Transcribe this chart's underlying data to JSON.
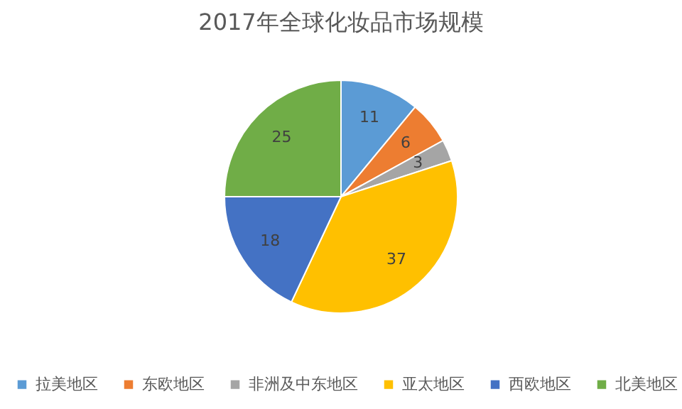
{
  "chart_data": {
    "type": "pie",
    "title": "2017年全球化妆品市场规模",
    "categories": [
      "拉美地区",
      "东欧地区",
      "非洲及中东地区",
      "亚太地区",
      "西欧地区",
      "北美地区"
    ],
    "values": [
      11,
      6,
      3,
      37,
      18,
      25
    ],
    "colors": [
      "#5b9bd5",
      "#ed7d31",
      "#a5a5a5",
      "#ffc000",
      "#4472c4",
      "#70ad47"
    ],
    "data_labels": true,
    "legend": "bottom"
  }
}
